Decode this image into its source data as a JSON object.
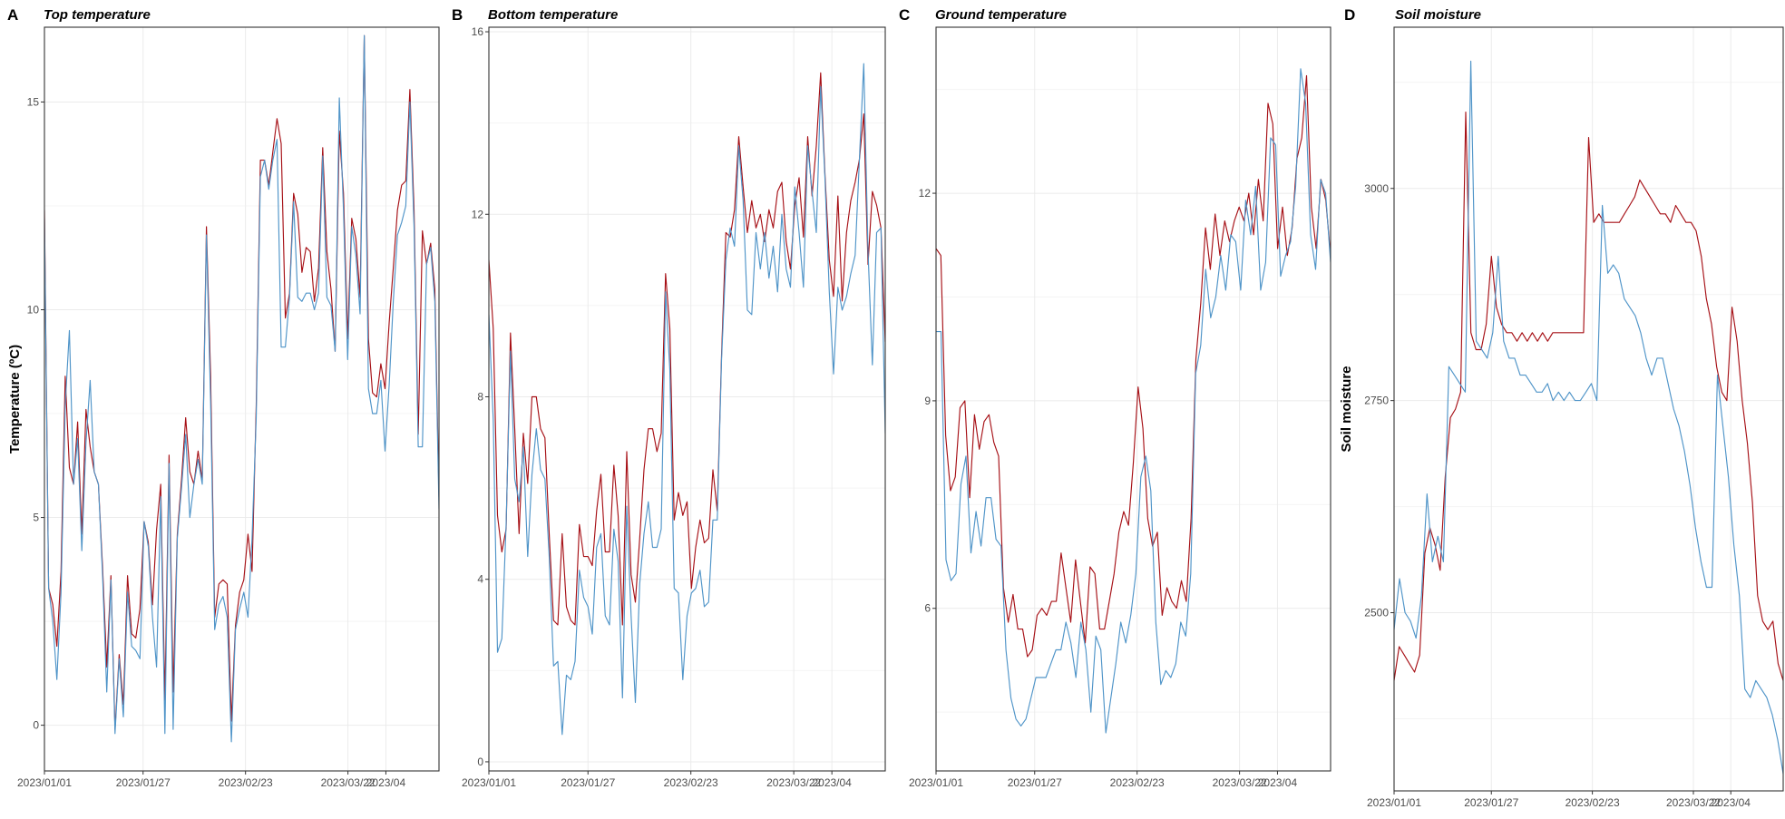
{
  "colors": {
    "series_a": "#a61016",
    "series_b": "#4f94c8"
  },
  "chart_data": [
    {
      "type": "line",
      "panel_label": "A",
      "title": "Top temperature",
      "ylabel": "Temperature (ºC)",
      "xlabel": "",
      "x_start": "2023/01/01",
      "x_ticks": [
        "2023/01/01",
        "2023/01/27",
        "2023/02/23",
        "2023/03/22",
        "2023/04"
      ],
      "y_ticks": [
        0,
        5,
        10,
        15
      ],
      "xlim": [
        0,
        104
      ],
      "ylim": [
        -1.1,
        16.8
      ],
      "series": [
        {
          "values": [
            12.4,
            3.3,
            2.9,
            1.9,
            3.7,
            8.4,
            6.2,
            5.8,
            7.3,
            4.6,
            7.6,
            6.7,
            6.1,
            5.8,
            3.8,
            1.4,
            3.6,
            -0.1,
            1.7,
            0.5,
            3.6,
            2.2,
            2.1,
            2.8,
            4.9,
            4.4,
            2.9,
            4.7,
            5.8,
            0.6,
            6.5,
            0.8,
            4.6,
            5.9,
            7.4,
            6.1,
            5.8,
            6.6,
            5.9,
            12.0,
            8.4,
            2.6,
            3.4,
            3.5,
            3.4,
            0.1,
            2.4,
            3.2,
            3.5,
            4.6,
            3.7,
            7.7,
            13.6,
            13.6,
            13.0,
            13.8,
            14.6,
            14.0,
            9.8,
            10.4,
            12.8,
            12.3,
            10.9,
            11.5,
            11.4,
            10.2,
            11.0,
            13.9,
            11.4,
            10.5,
            9.0,
            14.3,
            12.8,
            9.3,
            12.2,
            11.7,
            10.3,
            16.6,
            9.3,
            8.0,
            7.9,
            8.7,
            8.1,
            9.7,
            11.0,
            12.4,
            13.0,
            13.1,
            15.3,
            12.4,
            7.0,
            11.9,
            11.1,
            11.6,
            10.5,
            5.5
          ]
        },
        {
          "values": [
            12.2,
            3.3,
            2.5,
            1.1,
            3.2,
            7.7,
            9.5,
            5.8,
            6.9,
            4.2,
            6.8,
            8.3,
            6.1,
            5.8,
            3.6,
            0.8,
            3.5,
            -0.2,
            1.6,
            0.2,
            3.2,
            1.9,
            1.8,
            1.6,
            4.9,
            4.3,
            2.6,
            1.4,
            5.5,
            -0.2,
            6.3,
            -0.1,
            4.5,
            5.7,
            7.0,
            5.0,
            5.8,
            6.4,
            5.8,
            11.8,
            7.8,
            2.3,
            2.9,
            3.1,
            2.6,
            -0.4,
            2.3,
            2.8,
            3.2,
            2.6,
            4.5,
            7.4,
            13.2,
            13.6,
            12.9,
            13.6,
            14.1,
            9.1,
            9.1,
            10.3,
            12.6,
            10.3,
            10.2,
            10.4,
            10.4,
            10.0,
            10.4,
            13.7,
            10.3,
            10.1,
            9.0,
            15.1,
            12.4,
            8.8,
            12.0,
            11.3,
            9.9,
            16.6,
            8.1,
            7.5,
            7.5,
            8.3,
            6.6,
            8.2,
            10.2,
            11.8,
            12.1,
            12.5,
            15.0,
            12.0,
            6.7,
            6.7,
            11.1,
            11.5,
            10.2,
            5.2
          ]
        }
      ]
    },
    {
      "type": "line",
      "panel_label": "B",
      "title": "Bottom temperature",
      "ylabel": "",
      "xlabel": "",
      "x_start": "2023/01/01",
      "x_ticks": [
        "2023/01/01",
        "2023/01/27",
        "2023/02/23",
        "2023/03/22",
        "2023/04"
      ],
      "y_ticks": [
        0,
        4,
        8,
        12,
        16
      ],
      "xlim": [
        0,
        104
      ],
      "ylim": [
        -0.2,
        16.1
      ],
      "series": [
        {
          "values": [
            11.0,
            9.5,
            5.4,
            4.6,
            5.1,
            9.4,
            7.3,
            5.0,
            7.2,
            6.1,
            8.0,
            8.0,
            7.3,
            7.1,
            5.0,
            3.1,
            3.0,
            5.0,
            3.4,
            3.1,
            3.0,
            5.2,
            4.5,
            4.5,
            4.3,
            5.5,
            6.3,
            4.6,
            4.6,
            6.5,
            5.4,
            3.0,
            6.8,
            4.1,
            3.5,
            4.9,
            6.4,
            7.3,
            7.3,
            6.8,
            7.2,
            10.7,
            9.5,
            5.3,
            5.9,
            5.4,
            5.7,
            3.8,
            4.7,
            5.3,
            4.8,
            4.9,
            6.4,
            5.5,
            8.9,
            11.6,
            11.5,
            12.1,
            13.7,
            12.6,
            11.6,
            12.3,
            11.7,
            12.0,
            11.4,
            12.1,
            11.7,
            12.5,
            12.7,
            11.4,
            10.8,
            12.2,
            12.8,
            11.5,
            13.7,
            12.4,
            13.5,
            15.1,
            12.9,
            11.0,
            10.2,
            12.4,
            10.1,
            11.6,
            12.3,
            12.7,
            13.2,
            14.2,
            10.9,
            12.5,
            12.2,
            11.7,
            9.2
          ]
        },
        {
          "values": [
            9.8,
            7.5,
            2.4,
            2.7,
            5.2,
            9.0,
            6.2,
            5.7,
            6.9,
            4.5,
            6.3,
            7.3,
            6.4,
            6.2,
            4.5,
            2.1,
            2.2,
            0.6,
            1.9,
            1.8,
            2.2,
            4.2,
            3.6,
            3.4,
            2.8,
            4.7,
            5.0,
            3.2,
            3.0,
            5.1,
            4.4,
            1.4,
            5.6,
            3.2,
            1.3,
            3.9,
            5.0,
            5.7,
            4.7,
            4.7,
            5.1,
            10.3,
            8.6,
            3.8,
            3.7,
            1.8,
            3.2,
            3.7,
            3.8,
            4.2,
            3.4,
            3.5,
            5.3,
            5.3,
            8.8,
            11.0,
            11.7,
            11.3,
            13.5,
            12.3,
            9.9,
            9.8,
            11.6,
            10.8,
            11.6,
            10.6,
            11.3,
            10.3,
            12.0,
            10.8,
            10.4,
            12.6,
            11.6,
            10.4,
            13.5,
            12.5,
            11.6,
            14.8,
            12.8,
            10.3,
            8.5,
            10.4,
            9.9,
            10.2,
            10.7,
            11.1,
            13.2,
            15.3,
            11.2,
            8.7,
            11.6,
            11.7,
            7.2
          ]
        }
      ]
    },
    {
      "type": "line",
      "panel_label": "C",
      "title": "Ground temperature",
      "ylabel": "",
      "xlabel": "",
      "x_start": "2023/01/01",
      "x_ticks": [
        "2023/01/01",
        "2023/01/27",
        "2023/02/23",
        "2023/03/22",
        "2023/04"
      ],
      "y_ticks": [
        6,
        9,
        12
      ],
      "xlim": [
        0,
        104
      ],
      "ylim": [
        3.65,
        14.4
      ],
      "series": [
        {
          "values": [
            11.2,
            11.1,
            8.5,
            7.7,
            7.9,
            8.9,
            9.0,
            7.6,
            8.8,
            8.3,
            8.7,
            8.8,
            8.4,
            8.2,
            6.3,
            5.8,
            6.2,
            5.7,
            5.7,
            5.3,
            5.4,
            5.9,
            6.0,
            5.9,
            6.1,
            6.1,
            6.8,
            6.3,
            5.8,
            6.7,
            6.1,
            5.5,
            6.6,
            6.5,
            5.7,
            5.7,
            6.1,
            6.5,
            7.1,
            7.4,
            7.2,
            8.1,
            9.2,
            8.6,
            7.3,
            6.9,
            7.1,
            5.9,
            6.3,
            6.1,
            6.0,
            6.4,
            6.1,
            7.3,
            9.6,
            10.4,
            11.5,
            10.9,
            11.7,
            11.1,
            11.6,
            11.3,
            11.6,
            11.8,
            11.6,
            12.0,
            11.4,
            12.2,
            11.6,
            13.3,
            13.0,
            11.2,
            11.8,
            11.1,
            11.5,
            12.5,
            12.8,
            13.7,
            11.8,
            11.2,
            12.2,
            11.9,
            11.1
          ]
        },
        {
          "values": [
            10.0,
            10.0,
            6.7,
            6.4,
            6.5,
            7.8,
            8.2,
            6.8,
            7.4,
            6.9,
            7.6,
            7.6,
            7.0,
            6.9,
            5.4,
            4.7,
            4.4,
            4.3,
            4.4,
            4.7,
            5.0,
            5.0,
            5.0,
            5.2,
            5.4,
            5.4,
            5.8,
            5.5,
            5.0,
            5.8,
            5.4,
            4.5,
            5.6,
            5.4,
            4.2,
            4.7,
            5.2,
            5.8,
            5.5,
            5.9,
            6.5,
            7.9,
            8.2,
            7.7,
            5.8,
            4.9,
            5.1,
            5.0,
            5.2,
            5.8,
            5.6,
            6.5,
            9.4,
            9.8,
            10.9,
            10.2,
            10.5,
            11.1,
            10.6,
            11.4,
            11.3,
            10.6,
            11.9,
            11.4,
            12.1,
            10.6,
            11.0,
            12.8,
            12.7,
            10.8,
            11.1,
            11.3,
            12.1,
            13.8,
            13.3,
            11.4,
            10.9,
            12.2,
            12.0,
            11.0
          ]
        }
      ]
    },
    {
      "type": "line",
      "panel_label": "D",
      "title": "Soil moisture",
      "ylabel": "Soil moisture",
      "xlabel": "",
      "x_start": "2023/01/01",
      "x_ticks": [
        "2023/01/01",
        "2023/01/27",
        "2023/02/23",
        "2023/03/22",
        "2023/04"
      ],
      "y_ticks": [
        2500,
        2750,
        3000
      ],
      "xlim": [
        0,
        104
      ],
      "ylim": [
        2290,
        3190
      ],
      "series": [
        {
          "values": [
            2420,
            2460,
            2450,
            2440,
            2430,
            2450,
            2570,
            2600,
            2580,
            2550,
            2660,
            2730,
            2740,
            2760,
            3090,
            2830,
            2810,
            2810,
            2840,
            2920,
            2860,
            2840,
            2830,
            2830,
            2820,
            2830,
            2820,
            2830,
            2820,
            2830,
            2820,
            2830,
            2830,
            2830,
            2830,
            2830,
            2830,
            2830,
            3060,
            2960,
            2970,
            2960,
            2960,
            2960,
            2960,
            2970,
            2980,
            2990,
            3010,
            3000,
            2990,
            2980,
            2970,
            2970,
            2960,
            2980,
            2970,
            2960,
            2960,
            2950,
            2920,
            2870,
            2840,
            2790,
            2760,
            2750,
            2860,
            2820,
            2750,
            2700,
            2630,
            2520,
            2490,
            2480,
            2490,
            2440,
            2420
          ]
        },
        {
          "values": [
            2480,
            2540,
            2500,
            2490,
            2470,
            2520,
            2640,
            2560,
            2590,
            2560,
            2790,
            2780,
            2770,
            2760,
            3150,
            2820,
            2810,
            2800,
            2830,
            2920,
            2820,
            2800,
            2800,
            2780,
            2780,
            2770,
            2760,
            2760,
            2770,
            2750,
            2760,
            2750,
            2760,
            2750,
            2750,
            2760,
            2770,
            2750,
            2980,
            2900,
            2910,
            2900,
            2870,
            2860,
            2850,
            2830,
            2800,
            2780,
            2800,
            2800,
            2770,
            2740,
            2720,
            2690,
            2650,
            2600,
            2560,
            2530,
            2530,
            2780,
            2720,
            2660,
            2580,
            2520,
            2410,
            2400,
            2420,
            2410,
            2400,
            2380,
            2350,
            2310
          ]
        }
      ]
    }
  ]
}
